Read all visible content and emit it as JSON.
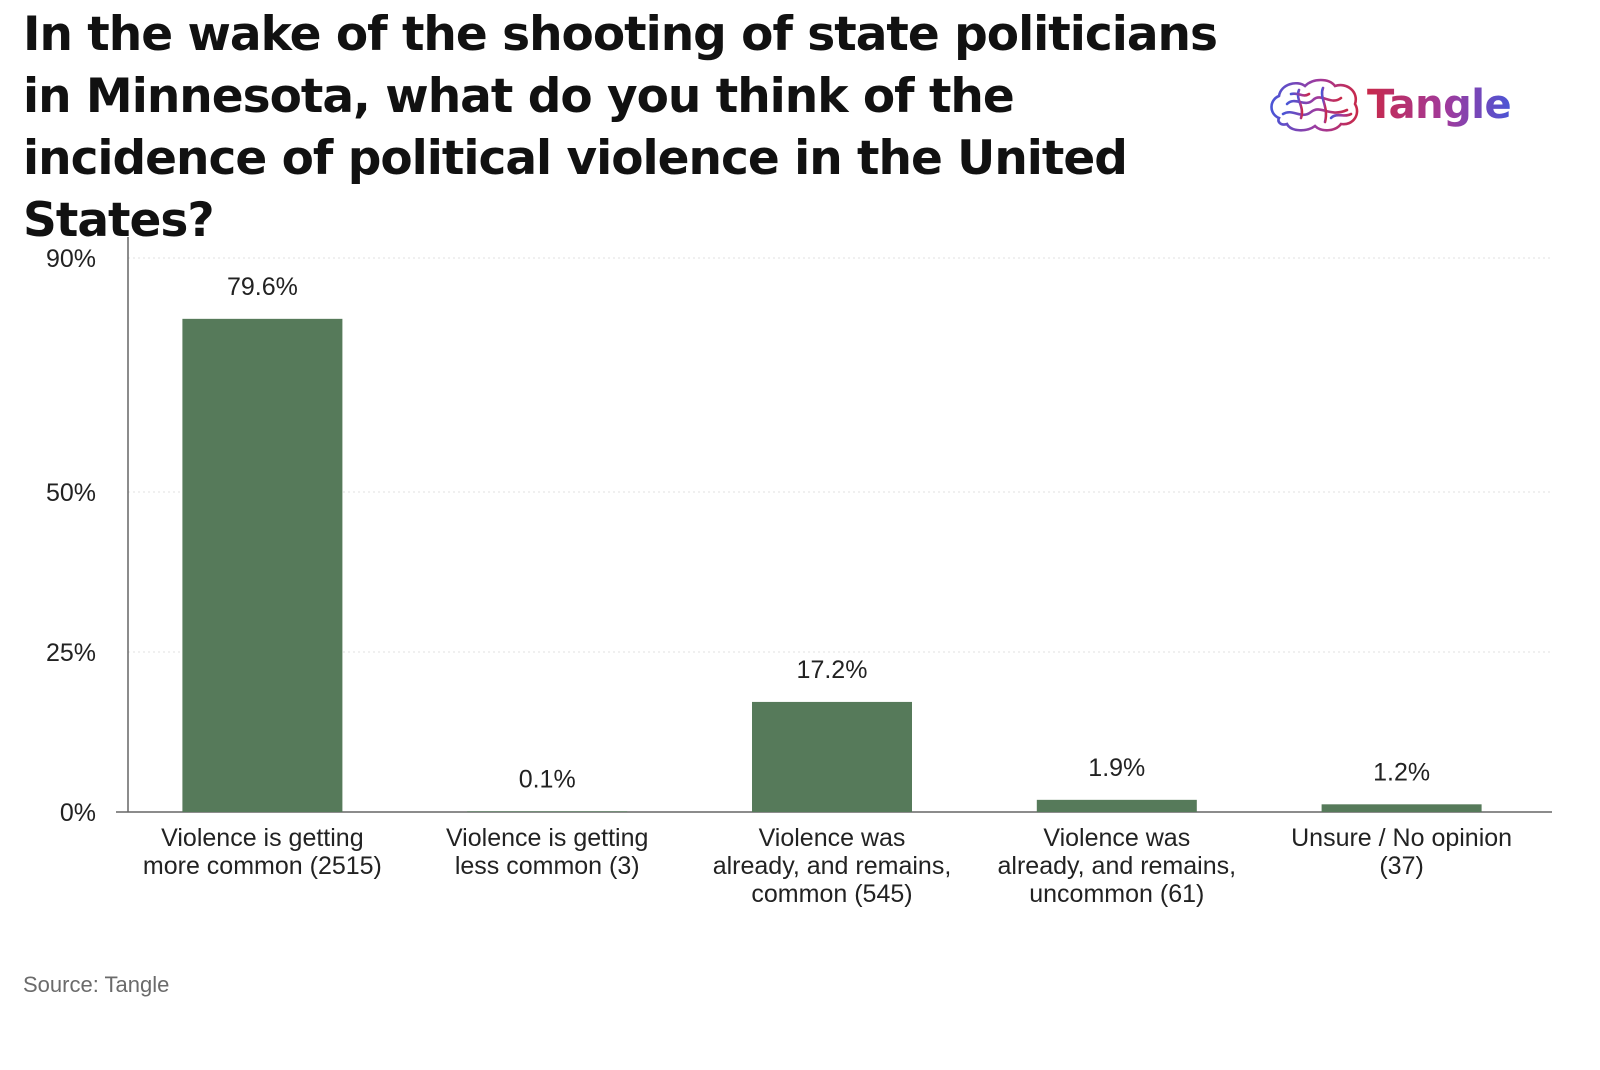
{
  "title": "In the wake of the shooting of state politicians in Minnesota, what do you think of the incidence of political violence in the United States?",
  "logo": {
    "text": "Tangle",
    "icon": "brain-icon"
  },
  "source": "Source: Tangle",
  "colors": {
    "bar": "#567a5a",
    "axis": "#666666",
    "grid": "#e2e2e2",
    "text": "#222222"
  },
  "chart_data": {
    "type": "bar",
    "categories": [
      [
        "Violence is getting",
        "more common (2515)"
      ],
      [
        "Violence is getting",
        "less common (3)"
      ],
      [
        "Violence was",
        "already, and remains,",
        "common (545)"
      ],
      [
        "Violence was",
        "already, and remains,",
        "uncommon (61)"
      ],
      [
        "Unsure / No opinion",
        "(37)"
      ]
    ],
    "values": [
      79.6,
      0.1,
      17.2,
      1.9,
      1.2
    ],
    "value_labels": [
      "79.6%",
      "0.1%",
      "17.2%",
      "1.9%",
      "1.2%"
    ],
    "y_ticks": [
      0,
      25,
      50,
      90
    ],
    "y_tick_labels": [
      "0%",
      "25%",
      "50%",
      "90%"
    ],
    "y_scale": "piecewise-linear",
    "ylim": [
      0,
      90
    ],
    "grid": true,
    "legend": "none"
  }
}
